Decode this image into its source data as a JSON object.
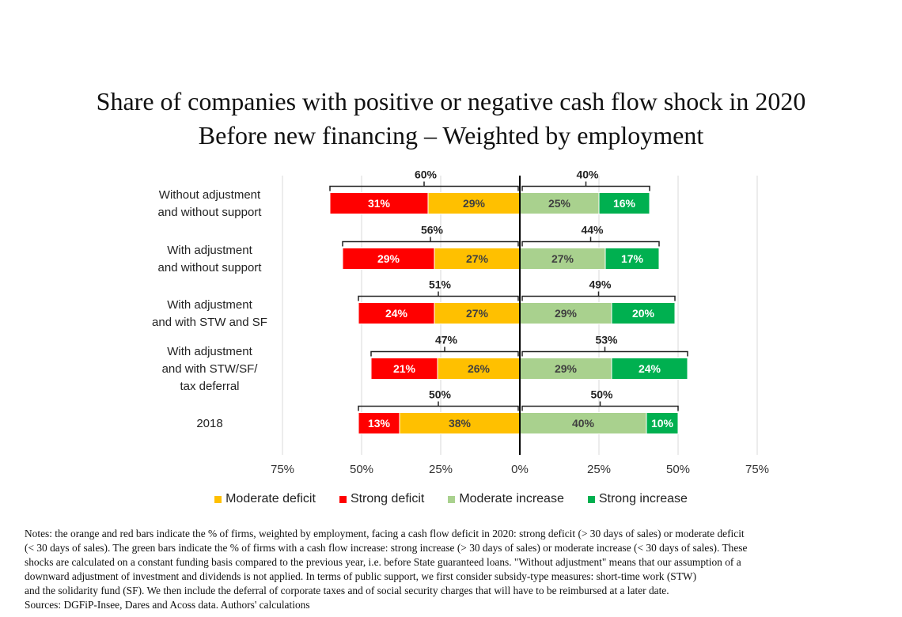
{
  "title_line1": "Share of companies with positive or negative cash flow shock in 2020",
  "title_line2": "Before new financing  – Weighted by employment",
  "legend": [
    {
      "key": "moderate_deficit",
      "label": "Moderate deficit",
      "color": "#FFC000"
    },
    {
      "key": "strong_deficit",
      "label": "Strong deficit",
      "color": "#FF0000"
    },
    {
      "key": "moderate_increase",
      "label": "Moderate increase",
      "color": "#A9D18E"
    },
    {
      "key": "strong_increase",
      "label": "Strong increase",
      "color": "#00B050"
    }
  ],
  "notes": [
    "Notes: the orange and red bars indicate the % of firms, weighted by employment, facing a cash flow deficit in 2020: strong deficit  (> 30 days of sales) or moderate deficit",
    "(< 30 days of sales).  The green bars indicate the % of firms with a cash flow increase:  strong increase (> 30 days of sales) or moderate increase (< 30 days of sales).  These",
    "shocks are calculated on a constant funding basis compared to the previous year, i.e. before State guaranteed loans. \"Without adjustment\" means that our assumption of a",
    "downward adjustment of investment and dividends is not applied. In terms of public support, we first consider subsidy-type measures:  short-time work (STW)",
    "and the solidarity fund (SF). We then include the deferral of corporate taxes and of social security charges that  will have to be reimbursed at a later date.",
    "Sources: DGFiP-Insee, Dares and Acoss data. Authors' calculations"
  ],
  "chart_data": {
    "type": "bar",
    "orientation": "horizontal-diverging",
    "categories": [
      [
        "Without adjustment",
        "and without support"
      ],
      [
        "With adjustment",
        "and without support"
      ],
      [
        "With adjustment",
        "and with STW and SF"
      ],
      [
        "With adjustment",
        "and with STW/SF/",
        "tax deferral"
      ],
      [
        "2018"
      ]
    ],
    "series": [
      {
        "name": "Strong deficit",
        "key": "strong_deficit",
        "side": "negative",
        "values": [
          31,
          29,
          24,
          21,
          13
        ],
        "labels": [
          "31%",
          "29%",
          "24%",
          "21%",
          "13%"
        ]
      },
      {
        "name": "Moderate deficit",
        "key": "moderate_deficit",
        "side": "negative",
        "values": [
          29,
          27,
          27,
          26,
          38
        ],
        "labels": [
          "29%",
          "27%",
          "27%",
          "26%",
          "38%"
        ]
      },
      {
        "name": "Moderate increase",
        "key": "moderate_increase",
        "side": "positive",
        "values": [
          25,
          27,
          29,
          29,
          40
        ],
        "labels": [
          "25%",
          "27%",
          "29%",
          "29%",
          "40%"
        ]
      },
      {
        "name": "Strong increase",
        "key": "strong_increase",
        "side": "positive",
        "values": [
          16,
          17,
          20,
          24,
          10
        ],
        "labels": [
          "16%",
          "17%",
          "20%",
          "24%",
          "10%"
        ]
      }
    ],
    "deficit_totals": [
      "60%",
      "56%",
      "51%",
      "47%",
      "50%"
    ],
    "increase_totals": [
      "40%",
      "44%",
      "49%",
      "53%",
      "50%"
    ],
    "xlim": [
      -75,
      75
    ],
    "xticks": [
      -75,
      -50,
      -25,
      0,
      25,
      50,
      75
    ],
    "xtick_labels": [
      "75%",
      "50%",
      "25%",
      "0%",
      "25%",
      "50%",
      "75%"
    ],
    "grid": true
  }
}
